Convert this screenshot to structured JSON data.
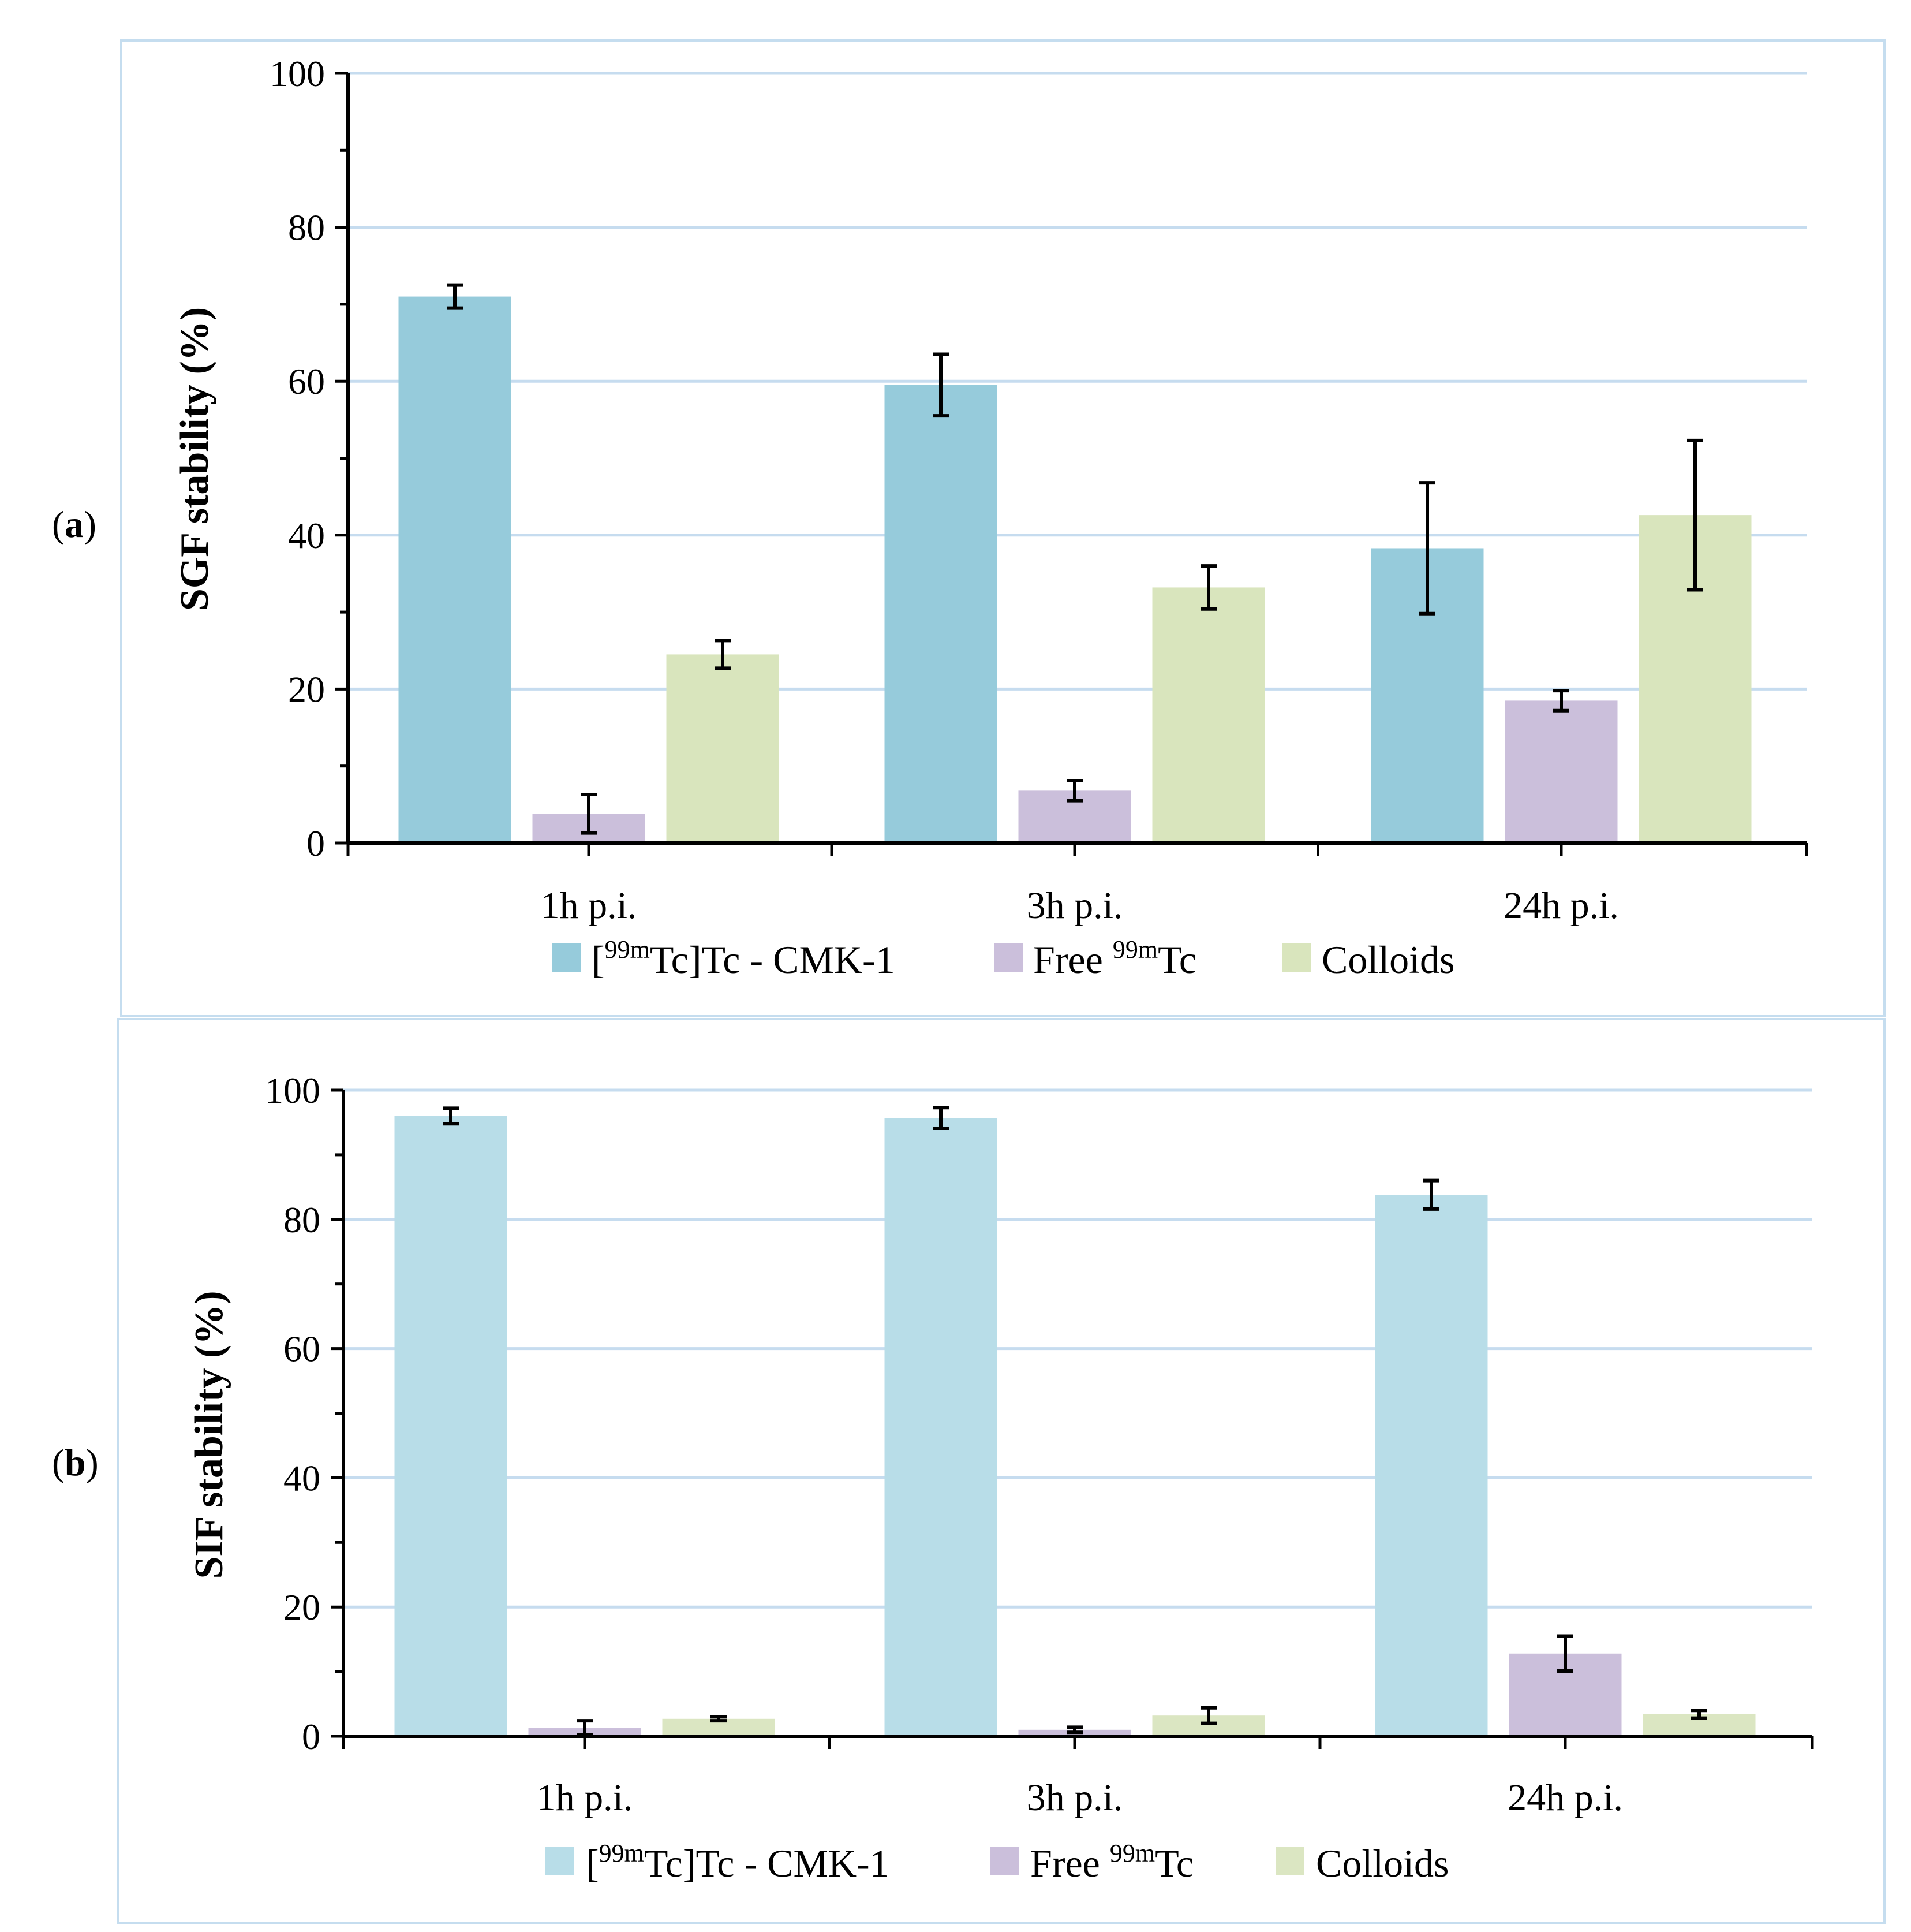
{
  "chart_data": [
    {
      "type": "bar",
      "panel_label": "a",
      "title": "",
      "xlabel": "",
      "ylabel": "SGF stability (%)",
      "ylim": [
        0,
        100
      ],
      "yticks": [
        0,
        20,
        40,
        60,
        80,
        100
      ],
      "grid": true,
      "legend_position": "bottom",
      "categories": [
        "1h p.i.",
        "3h p.i.",
        "24h p.i."
      ],
      "series": [
        {
          "name": "[99mTc]Tc - CMK-1",
          "legend_pre": "[",
          "legend_sup": "99m",
          "legend_post": "Tc]Tc - CMK-1",
          "color": "#96cbdb",
          "values": [
            71,
            59.5,
            38.3
          ],
          "errors": [
            1.5,
            4,
            8.5
          ]
        },
        {
          "name": "Free 99mTc",
          "legend_pre": "Free ",
          "legend_sup": "99m",
          "legend_post": "Tc",
          "color": "#cbbfdb",
          "values": [
            3.8,
            6.8,
            18.5
          ],
          "errors": [
            2.5,
            1.3,
            1.3
          ]
        },
        {
          "name": "Colloids",
          "legend_pre": "Colloids",
          "legend_sup": "",
          "legend_post": "",
          "color": "#d9e5bd",
          "values": [
            24.5,
            33.2,
            42.6
          ],
          "errors": [
            1.8,
            2.8,
            9.7
          ]
        }
      ]
    },
    {
      "type": "bar",
      "panel_label": "b",
      "title": "",
      "xlabel": "",
      "ylabel": "SIF stability  (%)",
      "ylim": [
        0,
        100
      ],
      "yticks": [
        0,
        20,
        40,
        60,
        80,
        100
      ],
      "grid": true,
      "legend_position": "bottom",
      "categories": [
        "1h p.i.",
        "3h p.i.",
        "24h p.i."
      ],
      "series": [
        {
          "name": "[99mTc]Tc - CMK-1",
          "legend_pre": "[",
          "legend_sup": "99m",
          "legend_post": "Tc]Tc - CMK-1",
          "color": "#b8dde8",
          "values": [
            96,
            95.7,
            83.8
          ],
          "errors": [
            1.2,
            1.6,
            2.2
          ]
        },
        {
          "name": "Free 99mTc",
          "legend_pre": "Free ",
          "legend_sup": "99m",
          "legend_post": "Tc",
          "color": "#cbbfdb",
          "values": [
            1.3,
            1,
            12.8
          ],
          "errors": [
            1.1,
            0.4,
            2.7
          ]
        },
        {
          "name": "Colloids",
          "legend_pre": "Colloids",
          "legend_sup": "",
          "legend_post": "",
          "color": "#dbe6c2",
          "values": [
            2.7,
            3.2,
            3.4
          ],
          "errors": [
            0.3,
            1.2,
            0.6
          ]
        }
      ]
    }
  ]
}
